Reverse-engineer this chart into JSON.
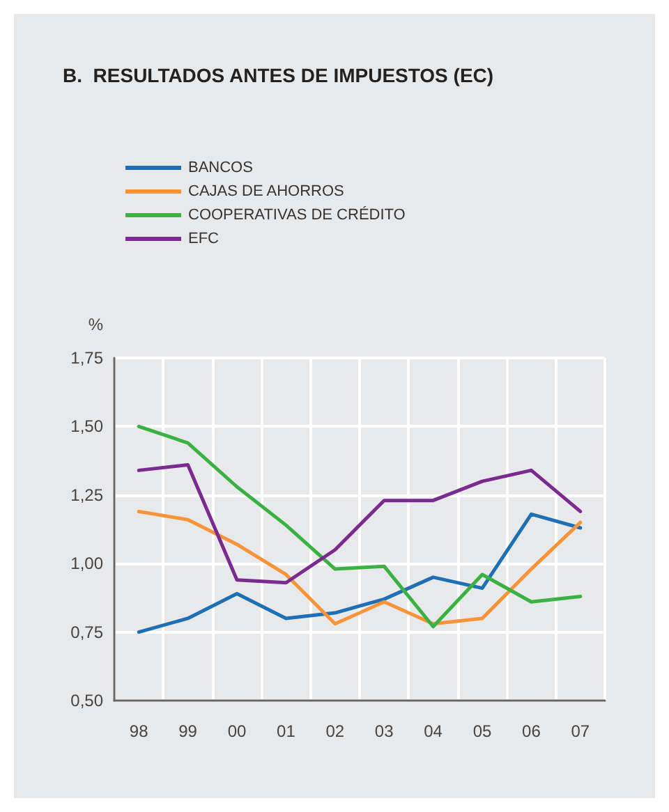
{
  "chart_data": {
    "type": "line",
    "title": "B.  RESULTADOS ANTES DE IMPUESTOS (EC)",
    "ylabel": "%",
    "categories": [
      "98",
      "99",
      "00",
      "01",
      "02",
      "03",
      "04",
      "05",
      "06",
      "07"
    ],
    "series": [
      {
        "name": "BANCOS",
        "color": "#1f6fb5",
        "values": [
          0.75,
          0.8,
          0.89,
          0.8,
          0.82,
          0.87,
          0.95,
          0.91,
          1.18,
          1.13
        ]
      },
      {
        "name": "CAJAS DE AHORROS",
        "color": "#f7943a",
        "values": [
          1.19,
          1.16,
          1.07,
          0.96,
          0.78,
          0.86,
          0.78,
          0.8,
          0.98,
          1.15
        ]
      },
      {
        "name": "COOPERATIVAS DE CRÉDITO",
        "color": "#3bb043",
        "values": [
          1.5,
          1.44,
          1.28,
          1.14,
          0.98,
          0.99,
          0.77,
          0.96,
          0.86,
          0.88
        ]
      },
      {
        "name": "EFC",
        "color": "#7b2a8f",
        "values": [
          1.34,
          1.36,
          0.94,
          0.93,
          1.05,
          1.23,
          1.23,
          1.3,
          1.34,
          1.19
        ]
      }
    ],
    "ylim": [
      0.5,
      1.75
    ],
    "yticks": [
      {
        "value": 0.5,
        "label": "0,50"
      },
      {
        "value": 0.75,
        "label": "0,75"
      },
      {
        "value": 1.0,
        "label": "1,00"
      },
      {
        "value": 1.25,
        "label": "1,25"
      },
      {
        "value": 1.5,
        "label": "1,50"
      },
      {
        "value": 1.75,
        "label": "1,75"
      }
    ],
    "grid": true,
    "legend": "top left",
    "marker": "none",
    "line_style": "solid"
  }
}
